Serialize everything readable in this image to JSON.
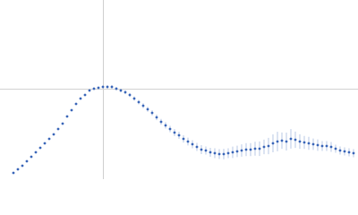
{
  "chart_data": {
    "type": "scatter",
    "x": [
      0.225,
      0.3,
      0.375,
      0.45,
      0.525,
      0.6,
      0.675,
      0.75,
      0.825,
      0.9,
      0.975,
      1.05,
      1.125,
      1.2,
      1.275,
      1.35,
      1.425,
      1.5,
      1.575,
      1.65,
      1.725,
      1.8,
      1.875,
      1.95,
      2.025,
      2.1,
      2.175,
      2.25,
      2.325,
      2.4,
      2.475,
      2.55,
      2.625,
      2.7,
      2.775,
      2.85,
      2.925,
      3.0,
      3.075,
      3.15,
      3.225,
      3.3,
      3.375,
      3.45,
      3.525,
      3.6,
      3.675,
      3.75,
      3.825,
      3.9,
      3.975,
      4.05,
      4.125,
      4.2,
      4.275,
      4.35,
      4.425,
      4.5,
      4.575,
      4.65,
      4.725,
      4.8,
      4.875,
      4.95,
      5.025,
      5.1,
      5.175,
      5.25,
      5.325,
      5.4,
      5.475,
      5.55,
      5.625,
      5.7,
      5.775,
      5.85,
      5.925
    ],
    "series": [
      {
        "color": "#3a66b8",
        "values": [
          0.077,
          0.121,
          0.165,
          0.22,
          0.275,
          0.33,
          0.385,
          0.44,
          0.495,
          0.55,
          0.616,
          0.682,
          0.77,
          0.847,
          0.924,
          0.99,
          1.034,
          1.089,
          1.111,
          1.122,
          1.133,
          1.133,
          1.133,
          1.111,
          1.089,
          1.067,
          1.034,
          0.99,
          0.946,
          0.902,
          0.858,
          0.814,
          0.759,
          0.704,
          0.66,
          0.616,
          0.572,
          0.539,
          0.495,
          0.462,
          0.429,
          0.396,
          0.363,
          0.352,
          0.33,
          0.319,
          0.308,
          0.308,
          0.319,
          0.33,
          0.341,
          0.352,
          0.363,
          0.363,
          0.374,
          0.374,
          0.396,
          0.407,
          0.44,
          0.462,
          0.473,
          0.462,
          0.495,
          0.484,
          0.462,
          0.451,
          0.44,
          0.429,
          0.418,
          0.407,
          0.407,
          0.396,
          0.374,
          0.352,
          0.341,
          0.33,
          0.319
        ],
        "errors": [
          0.005,
          0.005,
          0.005,
          0.006,
          0.006,
          0.006,
          0.007,
          0.007,
          0.008,
          0.008,
          0.009,
          0.01,
          0.01,
          0.011,
          0.012,
          0.013,
          0.014,
          0.015,
          0.016,
          0.017,
          0.018,
          0.02,
          0.022,
          0.02,
          0.022,
          0.024,
          0.025,
          0.026,
          0.028,
          0.03,
          0.03,
          0.032,
          0.034,
          0.036,
          0.038,
          0.04,
          0.042,
          0.044,
          0.046,
          0.048,
          0.05,
          0.05,
          0.055,
          0.05,
          0.055,
          0.06,
          0.06,
          0.065,
          0.06,
          0.07,
          0.07,
          0.075,
          0.08,
          0.08,
          0.085,
          0.09,
          0.09,
          0.1,
          0.11,
          0.12,
          0.1,
          0.11,
          0.12,
          0.1,
          0.09,
          0.08,
          0.08,
          0.07,
          0.07,
          0.06,
          0.06,
          0.06,
          0.05,
          0.05,
          0.05,
          0.05,
          0.05
        ]
      }
    ],
    "xlim": [
      0,
      6
    ],
    "ylim": [
      0,
      2.2
    ],
    "reference_lines": {
      "x": 1.732,
      "y": 1.104
    }
  }
}
